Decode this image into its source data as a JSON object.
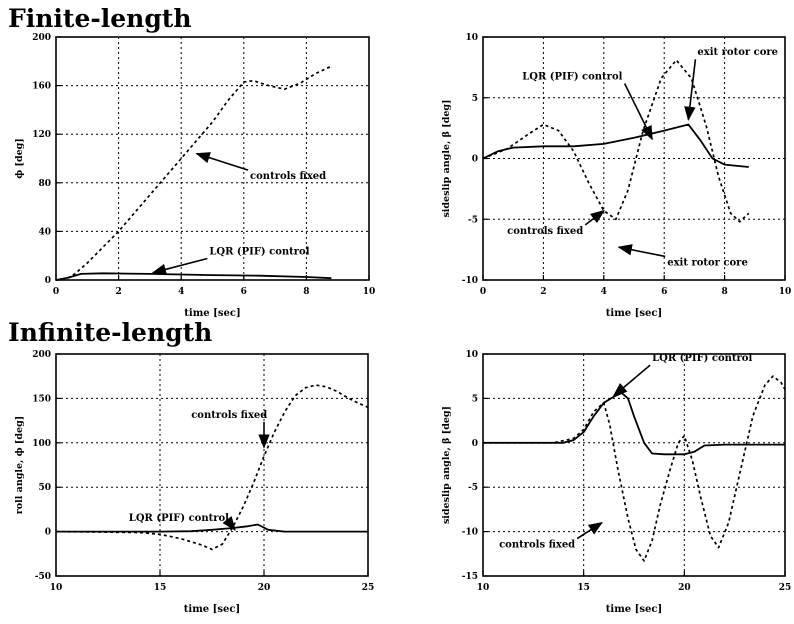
{
  "sections": {
    "finite": "Finite-length",
    "infinite": "Infinite-length"
  },
  "chart_data": [
    {
      "id": "finite-roll",
      "type": "line",
      "xlabel": "time [sec]",
      "ylabel": "ϕ [deg]",
      "xlim": [
        0,
        10
      ],
      "ylim": [
        0,
        200
      ],
      "xticks": [
        0,
        2,
        4,
        6,
        8,
        10
      ],
      "yticks": [
        0,
        40,
        80,
        120,
        160,
        200
      ],
      "grid": true,
      "series": [
        {
          "name": "controls fixed",
          "style": "dashed",
          "points": [
            [
              0,
              0
            ],
            [
              0.3,
              0.5
            ],
            [
              0.6,
              5
            ],
            [
              1,
              14
            ],
            [
              2,
              40
            ],
            [
              3,
              70
            ],
            [
              4,
              100
            ],
            [
              5,
              130
            ],
            [
              5.5,
              148
            ],
            [
              6,
              163
            ],
            [
              6.3,
              164
            ],
            [
              6.8,
              160
            ],
            [
              7.3,
              157
            ],
            [
              7.8,
              162
            ],
            [
              8.3,
              170
            ],
            [
              8.8,
              176
            ]
          ]
        },
        {
          "name": "LQR (PIF) control",
          "style": "solid",
          "points": [
            [
              0,
              0
            ],
            [
              0.4,
              2
            ],
            [
              0.8,
              5
            ],
            [
              1.5,
              5.5
            ],
            [
              3,
              5
            ],
            [
              5,
              4
            ],
            [
              6.5,
              3.5
            ],
            [
              8,
              2.5
            ],
            [
              8.8,
              1.5
            ]
          ]
        }
      ],
      "annotations": [
        {
          "text": "controls fixed",
          "at": [
            6.2,
            83
          ],
          "arrow_to": [
            4.5,
            104
          ]
        },
        {
          "text": "LQR (PIF) control",
          "at": [
            4.9,
            21
          ],
          "arrow_to": [
            3.1,
            6
          ]
        }
      ]
    },
    {
      "id": "finite-sideslip",
      "type": "line",
      "xlabel": "time [sec]",
      "ylabel": "sideslip angle, β [deg]",
      "xlim": [
        0,
        10
      ],
      "ylim": [
        -10,
        10
      ],
      "xticks": [
        0,
        2,
        4,
        6,
        8,
        10
      ],
      "yticks": [
        -10,
        -5,
        0,
        5,
        10
      ],
      "grid": true,
      "series": [
        {
          "name": "controls fixed",
          "style": "dashed",
          "points": [
            [
              0,
              0
            ],
            [
              0.8,
              0.8
            ],
            [
              1.5,
              2
            ],
            [
              2,
              2.8
            ],
            [
              2.5,
              2.3
            ],
            [
              3,
              0.6
            ],
            [
              3.5,
              -2
            ],
            [
              4,
              -4.3
            ],
            [
              4.4,
              -5
            ],
            [
              4.8,
              -2.6
            ],
            [
              5.3,
              2.3
            ],
            [
              5.9,
              6.6
            ],
            [
              6.4,
              8.1
            ],
            [
              6.9,
              6.6
            ],
            [
              7.4,
              2.6
            ],
            [
              7.8,
              -1.5
            ],
            [
              8.2,
              -4.5
            ],
            [
              8.5,
              -5.2
            ],
            [
              8.8,
              -4.5
            ]
          ]
        },
        {
          "name": "LQR (PIF) control",
          "style": "solid",
          "points": [
            [
              0,
              0
            ],
            [
              0.5,
              0.6
            ],
            [
              1,
              0.9
            ],
            [
              2,
              1.0
            ],
            [
              3,
              1.0
            ],
            [
              4,
              1.2
            ],
            [
              5,
              1.7
            ],
            [
              6,
              2.3
            ],
            [
              6.8,
              2.8
            ],
            [
              7.2,
              1.5
            ],
            [
              7.6,
              0
            ],
            [
              8,
              -0.5
            ],
            [
              8.8,
              -0.7
            ]
          ]
        }
      ],
      "annotations": [
        {
          "text": "exit rotor core",
          "at": [
            7.1,
            8.5
          ],
          "arrow_to": [
            6.8,
            3.2
          ]
        },
        {
          "text": "LQR (PIF) control",
          "at": [
            1.3,
            6.5
          ],
          "arrow_to": [
            5.6,
            1.6
          ]
        },
        {
          "text": "controls fixed",
          "at": [
            0.8,
            -6.2
          ],
          "arrow_to": [
            4.0,
            -4.3
          ]
        },
        {
          "text": "exit rotor core",
          "at": [
            6.1,
            -8.8
          ],
          "arrow_to": [
            4.5,
            -7.3
          ]
        }
      ]
    },
    {
      "id": "infinite-roll",
      "type": "line",
      "xlabel": "time [sec]",
      "ylabel": "roll angle, ϕ [deg]",
      "xlim": [
        10,
        25
      ],
      "ylim": [
        -50,
        200
      ],
      "xticks": [
        10,
        15,
        20,
        25
      ],
      "yticks": [
        -50,
        0,
        50,
        100,
        150,
        200
      ],
      "grid": true,
      "series": [
        {
          "name": "controls fixed",
          "style": "dashed",
          "points": [
            [
              10,
              0
            ],
            [
              12,
              -0.5
            ],
            [
              14,
              -1
            ],
            [
              15,
              -3
            ],
            [
              16,
              -8
            ],
            [
              17,
              -15
            ],
            [
              17.5,
              -20
            ],
            [
              18,
              -14
            ],
            [
              18.5,
              5
            ],
            [
              19,
              28
            ],
            [
              19.5,
              55
            ],
            [
              20,
              85
            ],
            [
              20.5,
              112
            ],
            [
              21,
              135
            ],
            [
              21.5,
              153
            ],
            [
              22,
              162
            ],
            [
              22.5,
              165
            ],
            [
              23,
              163
            ],
            [
              23.5,
              158
            ],
            [
              24,
              151
            ],
            [
              24.5,
              145
            ],
            [
              25,
              140
            ]
          ]
        },
        {
          "name": "LQR (PIF) control",
          "style": "solid",
          "points": [
            [
              10,
              0
            ],
            [
              15,
              0
            ],
            [
              16.5,
              0.5
            ],
            [
              17.5,
              2
            ],
            [
              18.5,
              4
            ],
            [
              19.2,
              6
            ],
            [
              19.7,
              8
            ],
            [
              20.2,
              2
            ],
            [
              21,
              0
            ],
            [
              25,
              0
            ]
          ]
        }
      ],
      "annotations": [
        {
          "text": "controls fixed",
          "at": [
            16.5,
            128
          ],
          "arrow_to": [
            20.0,
            95
          ]
        },
        {
          "text": "LQR (PIF) control",
          "at": [
            13.5,
            12
          ],
          "arrow_to": [
            18.6,
            2
          ]
        }
      ]
    },
    {
      "id": "infinite-sideslip",
      "type": "line",
      "xlabel": "time [sec]",
      "ylabel": "sideslip angle, β [deg]",
      "xlim": [
        10,
        25
      ],
      "ylim": [
        -15,
        10
      ],
      "xticks": [
        10,
        15,
        20,
        25
      ],
      "yticks": [
        -15,
        -10,
        -5,
        0,
        5,
        10
      ],
      "grid": true,
      "series": [
        {
          "name": "controls fixed",
          "style": "dashed",
          "points": [
            [
              10,
              0
            ],
            [
              13.5,
              0
            ],
            [
              14.5,
              0.5
            ],
            [
              15,
              1.5
            ],
            [
              15.5,
              3.5
            ],
            [
              16,
              4.5
            ],
            [
              16.3,
              2
            ],
            [
              16.7,
              -3
            ],
            [
              17.2,
              -8.5
            ],
            [
              17.6,
              -12
            ],
            [
              18,
              -13.3
            ],
            [
              18.4,
              -11
            ],
            [
              18.8,
              -7
            ],
            [
              19.3,
              -3
            ],
            [
              19.7,
              0
            ],
            [
              20,
              0.8
            ],
            [
              20.4,
              -2
            ],
            [
              20.8,
              -6
            ],
            [
              21.3,
              -10.5
            ],
            [
              21.7,
              -11.8
            ],
            [
              22.2,
              -9
            ],
            [
              22.8,
              -3
            ],
            [
              23.4,
              3
            ],
            [
              24,
              6.5
            ],
            [
              24.4,
              7.5
            ],
            [
              24.8,
              6.8
            ],
            [
              25,
              6
            ]
          ]
        },
        {
          "name": "LQR (PIF) control",
          "style": "solid",
          "points": [
            [
              10,
              0
            ],
            [
              14,
              0
            ],
            [
              14.5,
              0.3
            ],
            [
              15,
              1.2
            ],
            [
              15.5,
              3
            ],
            [
              16,
              4.5
            ],
            [
              16.5,
              5.2
            ],
            [
              16.9,
              5.6
            ],
            [
              17.2,
              5
            ],
            [
              17.5,
              3
            ],
            [
              18,
              0
            ],
            [
              18.4,
              -1.2
            ],
            [
              19,
              -1.3
            ],
            [
              20,
              -1.3
            ],
            [
              20.5,
              -1
            ],
            [
              21,
              -0.3
            ],
            [
              22,
              -0.2
            ],
            [
              25,
              -0.2
            ]
          ]
        }
      ],
      "annotations": [
        {
          "text": "LQR (PIF) control",
          "at": [
            18.4,
            9.2
          ],
          "arrow_to": [
            16.5,
            5.3
          ]
        },
        {
          "text": "controls fixed",
          "at": [
            10.8,
            -11.8
          ],
          "arrow_to": [
            15.9,
            -9.0
          ]
        }
      ]
    }
  ]
}
